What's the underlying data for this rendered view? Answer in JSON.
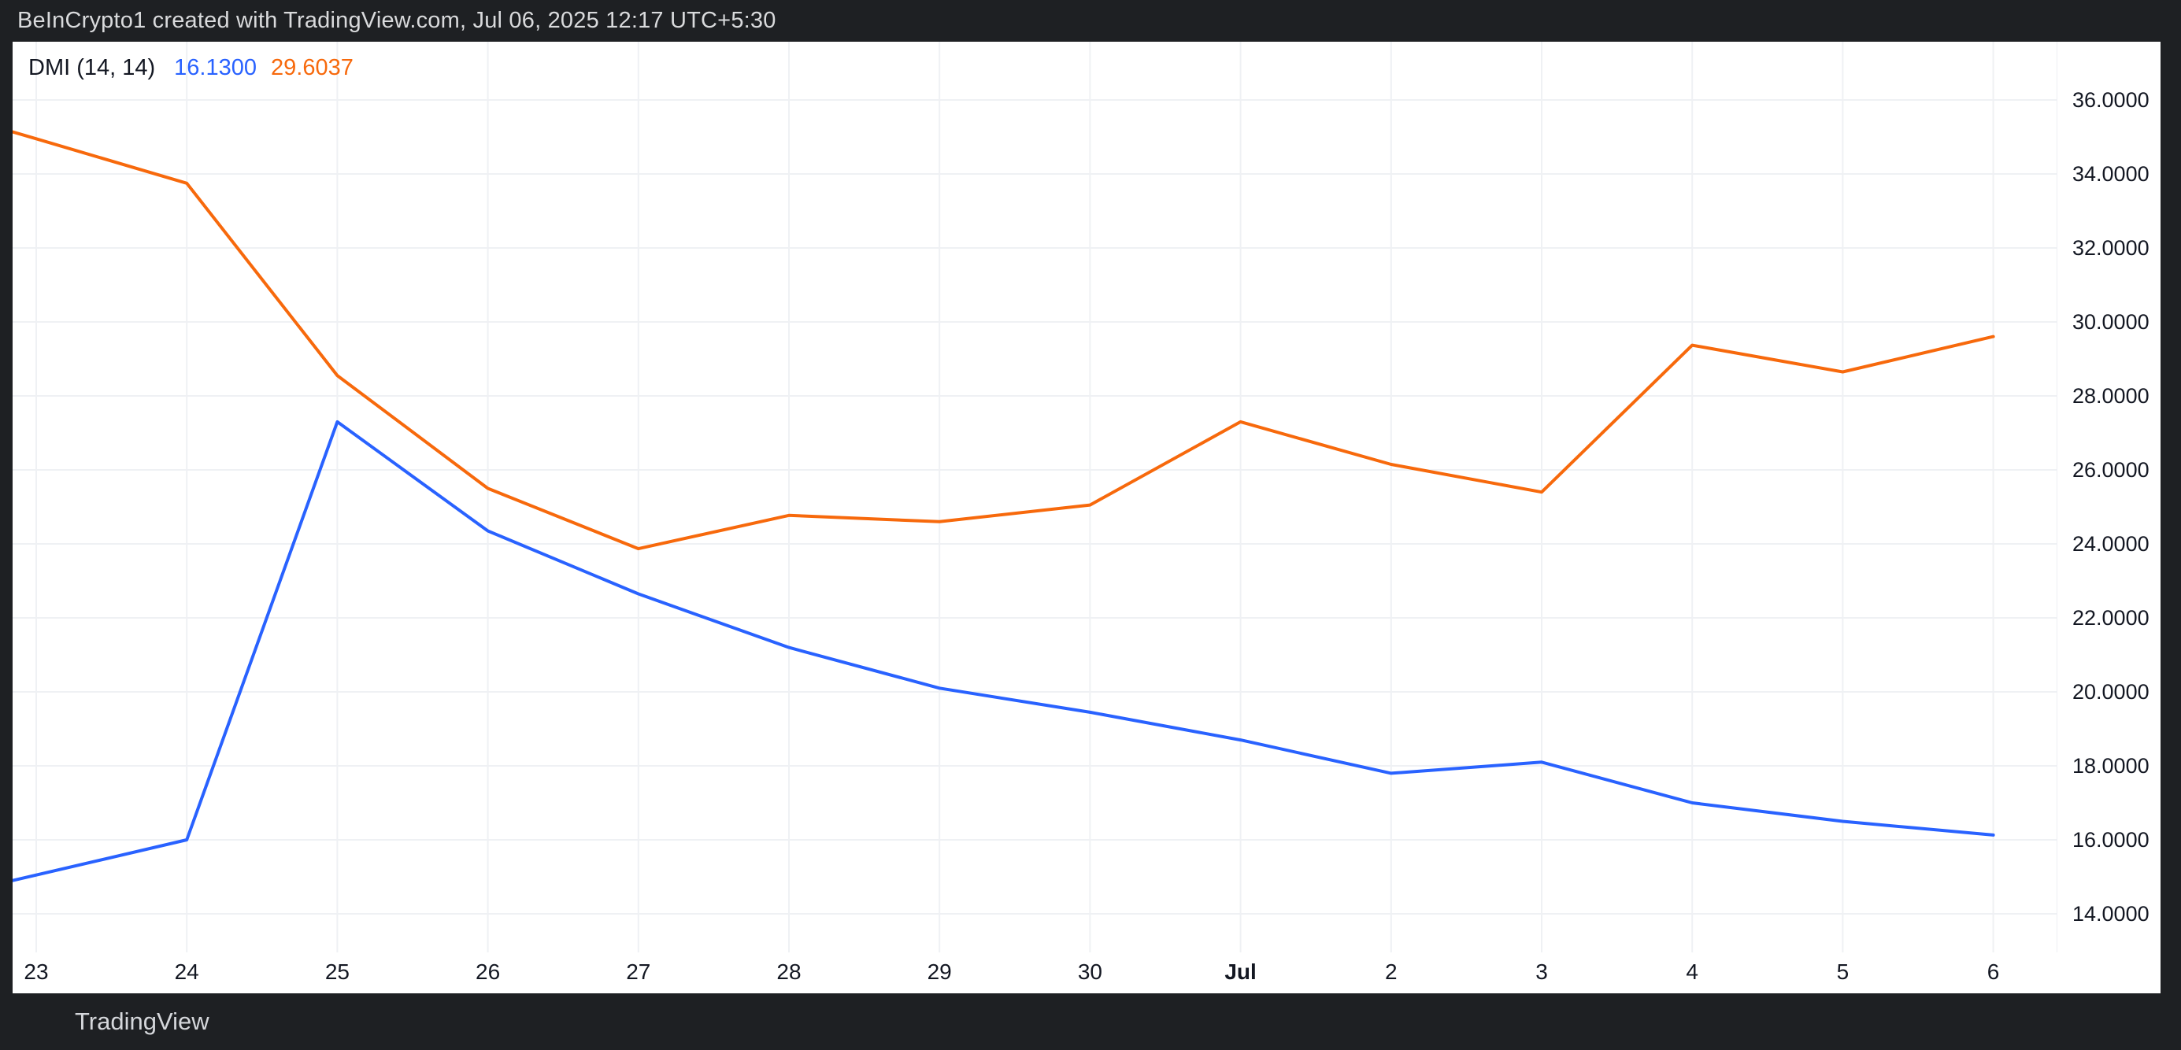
{
  "top_bar": {
    "attribution": "BeInCrypto1 created with TradingView.com, Jul 06, 2025 12:17 UTC+5:30"
  },
  "legend": {
    "indicator": "DMI (14, 14)",
    "blue_value": "16.1300",
    "orange_value": "29.6037"
  },
  "footer": {
    "brand": "TradingView",
    "logo_icon": "tradingview-logo-icon"
  },
  "colors": {
    "blue_line": "#2962FF",
    "orange_line": "#F7690C",
    "grid": "#EFF1F4",
    "axis_text": "#131722",
    "frame_bg": "#1E2023",
    "frame_text": "#D9DADC",
    "plot_bg": "#FFFFFF"
  },
  "chart_data": {
    "type": "line",
    "title": "DMI (14, 14)",
    "x_labels": [
      "23",
      "24",
      "25",
      "26",
      "27",
      "28",
      "29",
      "30",
      "Jul",
      "2",
      "3",
      "4",
      "5",
      "6"
    ],
    "bold_x_labels": [
      "Jul"
    ],
    "series": [
      {
        "name": "DMI blue line (+DI) 16.1300",
        "color": "#2962FF",
        "values": [
          15.05,
          16.0,
          27.3,
          24.35,
          22.65,
          21.2,
          20.1,
          19.45,
          18.7,
          17.8,
          18.1,
          17.0,
          16.5,
          16.13
        ]
      },
      {
        "name": "DMI orange line (-DI) 29.6037",
        "color": "#F7690C",
        "values": [
          34.95,
          33.75,
          28.55,
          25.5,
          23.87,
          24.77,
          24.6,
          25.05,
          27.3,
          26.15,
          25.4,
          29.37,
          28.65,
          29.6037
        ]
      }
    ],
    "y_tick_labels": [
      "36.0000",
      "34.0000",
      "32.0000",
      "30.0000",
      "28.0000",
      "26.0000",
      "24.0000",
      "22.0000",
      "20.0000",
      "18.0000",
      "16.0000",
      "14.0000"
    ],
    "y_tick_values": [
      36,
      34,
      32,
      30,
      28,
      26,
      24,
      22,
      20,
      18,
      16,
      14
    ],
    "ylim": [
      13.0,
      37.5
    ],
    "grid": true,
    "legend_position": "top-left",
    "y_axis_side": "right"
  }
}
